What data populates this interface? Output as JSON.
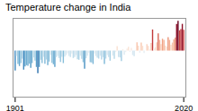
{
  "chart_data": {
    "type": "bar",
    "title": "Temperature change in India",
    "x": [
      1901,
      1902,
      1903,
      1904,
      1905,
      1906,
      1907,
      1908,
      1909,
      1910,
      1911,
      1912,
      1913,
      1914,
      1915,
      1916,
      1917,
      1918,
      1919,
      1920,
      1921,
      1922,
      1923,
      1924,
      1925,
      1926,
      1927,
      1928,
      1929,
      1930,
      1931,
      1932,
      1933,
      1934,
      1935,
      1936,
      1937,
      1938,
      1939,
      1940,
      1941,
      1942,
      1943,
      1944,
      1945,
      1946,
      1947,
      1948,
      1949,
      1950,
      1951,
      1952,
      1953,
      1954,
      1955,
      1956,
      1957,
      1958,
      1959,
      1960,
      1961,
      1962,
      1963,
      1964,
      1965,
      1966,
      1967,
      1968,
      1969,
      1970,
      1971,
      1972,
      1973,
      1974,
      1975,
      1976,
      1977,
      1978,
      1979,
      1980,
      1981,
      1982,
      1983,
      1984,
      1985,
      1986,
      1987,
      1988,
      1989,
      1990,
      1991,
      1992,
      1993,
      1994,
      1995,
      1996,
      1997,
      1998,
      1999,
      2000,
      2001,
      2002,
      2003,
      2004,
      2005,
      2006,
      2007,
      2008,
      2009,
      2010,
      2011,
      2012,
      2013,
      2014,
      2015,
      2016,
      2017,
      2018,
      2019,
      2020
    ],
    "values": [
      -0.67,
      -0.18,
      -0.45,
      -0.52,
      -0.42,
      -0.27,
      -0.64,
      -0.53,
      -0.49,
      -0.51,
      -0.44,
      -0.58,
      -0.42,
      -0.23,
      -0.34,
      -0.55,
      -0.76,
      -0.55,
      -0.31,
      -0.42,
      -0.21,
      -0.44,
      -0.3,
      -0.49,
      -0.37,
      -0.14,
      -0.41,
      -0.46,
      -0.55,
      -0.22,
      -0.18,
      -0.25,
      -0.38,
      -0.21,
      -0.42,
      -0.2,
      -0.15,
      -0.09,
      -0.18,
      -0.22,
      -0.1,
      -0.25,
      -0.22,
      -0.15,
      -0.29,
      -0.31,
      -0.17,
      -0.28,
      -0.39,
      -0.61,
      -0.26,
      -0.17,
      -0.07,
      -0.39,
      -0.4,
      -0.45,
      -0.1,
      -0.18,
      -0.24,
      -0.27,
      -0.17,
      -0.3,
      -0.22,
      -0.45,
      -0.27,
      -0.15,
      -0.22,
      -0.34,
      -0.01,
      -0.17,
      -0.28,
      -0.05,
      0.15,
      -0.22,
      -0.23,
      -0.35,
      0.05,
      -0.14,
      -0.05,
      0.07,
      0.13,
      -0.04,
      0.09,
      -0.15,
      -0.19,
      0.02,
      0.28,
      0.17,
      -0.07,
      0.27,
      0.16,
      -0.08,
      0.0,
      0.22,
      0.16,
      0.04,
      0.26,
      0.71,
      0.07,
      0.11,
      0.28,
      0.58,
      0.36,
      0.22,
      0.4,
      0.36,
      0.17,
      0.14,
      0.45,
      0.36,
      0.2,
      0.27,
      0.38,
      0.44,
      0.9,
      1.0,
      0.68,
      0.72,
      0.9,
      0.7
    ],
    "xlim": [
      1899.5,
      2021.5
    ],
    "ylim": [
      -1.55,
      1.1
    ],
    "xticks": [
      1901,
      2020
    ],
    "tick_labels": "x"
  }
}
